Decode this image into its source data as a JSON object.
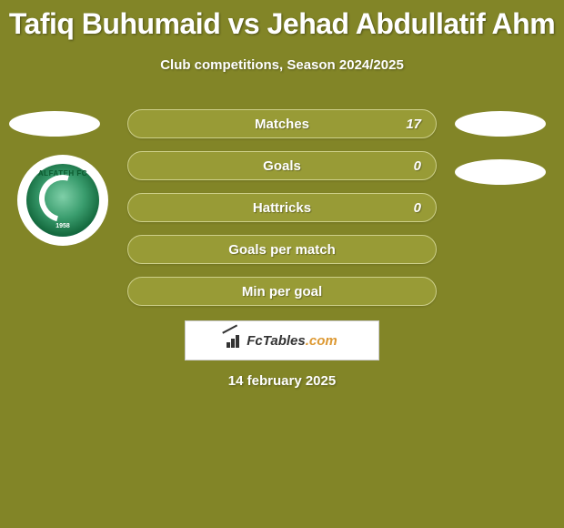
{
  "title": "Tafiq Buhumaid vs Jehad Abdullatif Ahm",
  "subtitle": "Club competitions, Season 2024/2025",
  "avatar": {
    "club_label": "ALFATEH FC",
    "year": "1958"
  },
  "stats": [
    {
      "label": "Matches",
      "value": "17"
    },
    {
      "label": "Goals",
      "value": "0"
    },
    {
      "label": "Hattricks",
      "value": "0"
    },
    {
      "label": "Goals per match",
      "value": ""
    },
    {
      "label": "Min per goal",
      "value": ""
    }
  ],
  "watermark": {
    "brand": "FcTables",
    "suffix": ".com"
  },
  "date": "14 february 2025",
  "colors": {
    "background": "#828527",
    "bar_fill": "#989b36",
    "bar_border": "#ced08a",
    "text": "#ffffff"
  }
}
